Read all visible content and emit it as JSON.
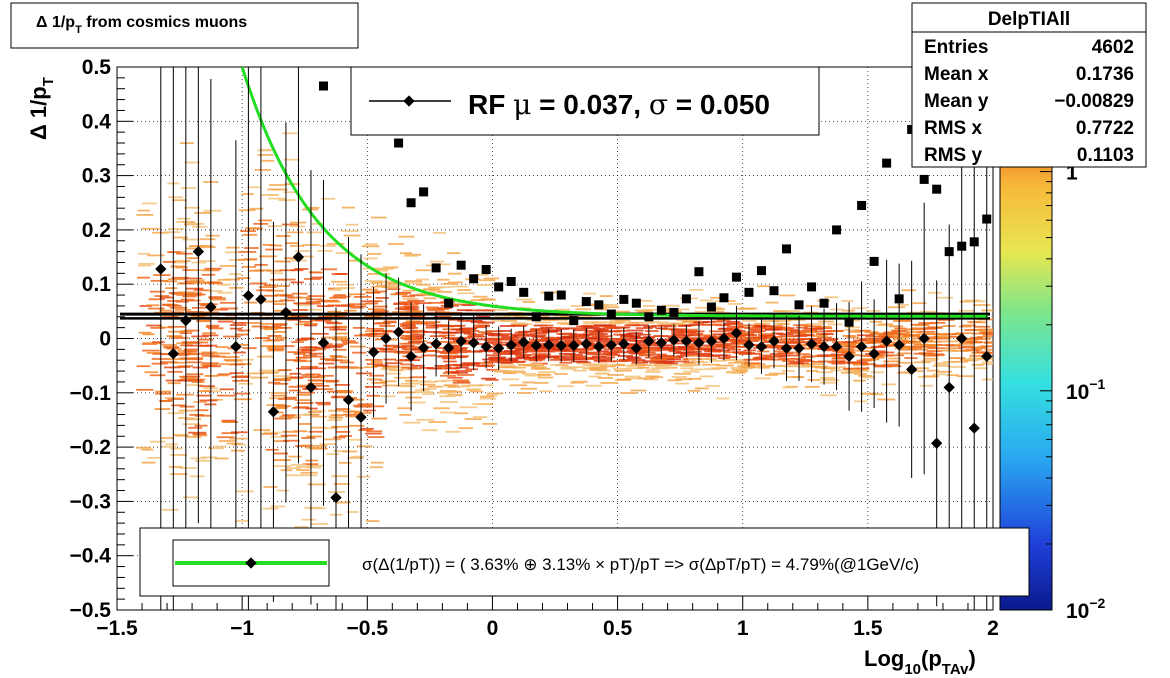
{
  "chart_data": {
    "type": "scatter",
    "title": "Δ 1/p",
    "title_sub": "T",
    "title_suffix": " from cosmics muons",
    "ylabel": "Δ 1/p",
    "ylabel_sub": "T",
    "xlabel": "Log",
    "xlabel_sub1": "10",
    "xlabel_mid": "(p",
    "xlabel_sub2": "TAv",
    "xlabel_end": ")",
    "xlim": [
      -1.5,
      2.0
    ],
    "ylim": [
      -0.5,
      0.5
    ],
    "xticks": [
      -1.5,
      -1,
      -0.5,
      0,
      0.5,
      1,
      1.5,
      2
    ],
    "xtick_labels": [
      "−1.5",
      "−1",
      "−0.5",
      "0",
      "0.5",
      "1",
      "1.5",
      "2"
    ],
    "yticks": [
      -0.5,
      -0.4,
      -0.3,
      -0.2,
      -0.1,
      0,
      0.1,
      0.2,
      0.3,
      0.4,
      0.5
    ],
    "ytick_labels": [
      "−0.5",
      "−0.4",
      "−0.3",
      "−0.2",
      "−0.1",
      "0",
      "0.1",
      "0.2",
      "0.3",
      "0.4",
      "0.5"
    ],
    "grid": true,
    "colorbar": {
      "scale": "log",
      "range": [
        0.01,
        3
      ],
      "labels": [
        {
          "value": 1,
          "text": "1"
        },
        {
          "value": 0.1,
          "text": "10",
          "sup": "−1"
        },
        {
          "value": 0.01,
          "text": "10",
          "sup": "−2"
        }
      ]
    },
    "stats_box": {
      "title": "DelpTIAll",
      "rows": [
        {
          "label": "Entries",
          "value": "4602"
        },
        {
          "label": "Mean x",
          "value": "0.1736"
        },
        {
          "label": "Mean y",
          "value": "−0.00829"
        },
        {
          "label": "RMS x",
          "value": "0.7722"
        },
        {
          "label": "RMS y",
          "value": "0.1103"
        }
      ]
    },
    "legend_top": {
      "text_prefix": "RF ",
      "mu_symbol": "μ",
      "mu_value": " =  0.037, ",
      "sigma_symbol": "σ",
      "sigma_value": " =   0.050"
    },
    "legend_bottom": "σ(Δ(1/pT)) = ( 3.63% ⊕  3.13% × pT)/pT => σ(ΔpT/pT) =  4.79%(@1GeV/c)",
    "hlines": [
      0.037,
      0.045
    ],
    "fit_curve": {
      "color": "#22dd22",
      "a": 0.0363,
      "b": 0.0313,
      "asymptote": 0.041
    },
    "means": {
      "x": [
        -1.325,
        -1.275,
        -1.225,
        -1.175,
        -1.125,
        -1.025,
        -0.975,
        -0.925,
        -0.875,
        -0.825,
        -0.775,
        -0.725,
        -0.675,
        -0.625,
        -0.575,
        -0.525,
        -0.475,
        -0.425,
        -0.375,
        -0.325,
        -0.275,
        -0.225,
        -0.175,
        -0.125,
        -0.075,
        -0.025,
        0.025,
        0.075,
        0.125,
        0.175,
        0.225,
        0.275,
        0.325,
        0.375,
        0.425,
        0.475,
        0.525,
        0.575,
        0.625,
        0.675,
        0.725,
        0.775,
        0.825,
        0.875,
        0.925,
        0.975,
        1.025,
        1.075,
        1.125,
        1.175,
        1.225,
        1.275,
        1.325,
        1.375,
        1.425,
        1.475,
        1.525,
        1.575,
        1.625,
        1.675,
        1.725,
        1.775,
        1.825,
        1.875,
        1.925,
        1.975
      ],
      "y": [
        0.128,
        -0.028,
        0.033,
        0.16,
        0.058,
        -0.015,
        0.079,
        0.072,
        -0.135,
        0.048,
        0.15,
        -0.09,
        -0.008,
        -0.293,
        -0.113,
        -0.145,
        -0.025,
        0.0,
        0.012,
        -0.033,
        -0.017,
        -0.01,
        -0.017,
        -0.005,
        -0.008,
        -0.015,
        -0.018,
        -0.012,
        -0.007,
        -0.013,
        -0.012,
        -0.013,
        -0.013,
        -0.01,
        -0.015,
        -0.012,
        -0.01,
        -0.018,
        -0.005,
        -0.008,
        -0.003,
        -0.005,
        -0.008,
        -0.005,
        0.0,
        0.01,
        -0.012,
        -0.015,
        -0.005,
        -0.018,
        -0.018,
        -0.01,
        -0.015,
        -0.015,
        -0.033,
        -0.015,
        -0.028,
        -0.005,
        -0.012,
        -0.057,
        0.0,
        -0.193,
        -0.09,
        0.0,
        -0.165,
        -0.033
      ],
      "err": [
        0.9,
        0.6,
        0.5,
        0.5,
        0.42,
        0.38,
        0.6,
        0.45,
        0.35,
        0.35,
        0.38,
        0.4,
        0.3,
        0.35,
        0.3,
        0.3,
        0.12,
        0.12,
        0.1,
        0.1,
        0.08,
        0.06,
        0.05,
        0.05,
        0.05,
        0.04,
        0.04,
        0.03,
        0.03,
        0.03,
        0.03,
        0.03,
        0.03,
        0.03,
        0.03,
        0.03,
        0.03,
        0.03,
        0.03,
        0.03,
        0.03,
        0.03,
        0.04,
        0.04,
        0.04,
        0.05,
        0.04,
        0.05,
        0.05,
        0.06,
        0.06,
        0.07,
        0.07,
        0.08,
        0.1,
        0.12,
        0.1,
        0.15,
        0.15,
        0.2,
        0.25,
        0.3,
        0.3,
        0.35,
        0.5,
        0.5
      ]
    },
    "sigmas": {
      "x": [
        -0.675,
        -0.375,
        -0.325,
        -0.275,
        -0.225,
        -0.175,
        -0.125,
        -0.075,
        -0.025,
        0.025,
        0.075,
        0.125,
        0.175,
        0.225,
        0.275,
        0.325,
        0.375,
        0.425,
        0.475,
        0.525,
        0.575,
        0.625,
        0.675,
        0.725,
        0.775,
        0.825,
        0.875,
        0.925,
        0.975,
        1.025,
        1.075,
        1.125,
        1.175,
        1.225,
        1.275,
        1.325,
        1.375,
        1.425,
        1.475,
        1.525,
        1.575,
        1.625,
        1.675,
        1.725,
        1.775,
        1.825,
        1.875,
        1.925,
        1.975
      ],
      "y": [
        0.465,
        0.36,
        0.25,
        0.27,
        0.13,
        0.065,
        0.135,
        0.11,
        0.127,
        0.095,
        0.105,
        0.085,
        0.04,
        0.078,
        0.08,
        0.033,
        0.068,
        0.062,
        0.045,
        0.072,
        0.065,
        0.04,
        0.052,
        0.048,
        0.073,
        0.123,
        0.058,
        0.075,
        0.113,
        0.085,
        0.125,
        0.088,
        0.165,
        0.062,
        0.095,
        0.065,
        0.2,
        0.03,
        0.245,
        0.142,
        0.323,
        0.073,
        0.385,
        0.293,
        0.275,
        0.16,
        0.17,
        0.178,
        0.22
      ]
    },
    "density_bins": [
      {
        "x": -1.3,
        "y": 0.0,
        "w": 0.6
      },
      {
        "x": -1.2,
        "y": 0.05,
        "w": 0.5
      },
      {
        "x": -1.1,
        "y": -0.05,
        "w": 0.6
      },
      {
        "x": -0.9,
        "y": 0.1,
        "w": 0.5
      },
      {
        "x": -0.8,
        "y": -0.1,
        "w": 0.5
      },
      {
        "x": -0.7,
        "y": 0.0,
        "w": 0.7
      },
      {
        "x": -0.55,
        "y": -0.05,
        "w": 0.6
      },
      {
        "x": -0.4,
        "y": 0.02,
        "w": 0.7
      },
      {
        "x": -0.25,
        "y": 0.0,
        "w": 0.8
      },
      {
        "x": -0.1,
        "y": -0.01,
        "w": 0.9
      },
      {
        "x": 0.1,
        "y": -0.01,
        "w": 1.0
      },
      {
        "x": 0.3,
        "y": -0.01,
        "w": 1.0
      },
      {
        "x": 0.5,
        "y": -0.01,
        "w": 1.0
      },
      {
        "x": 0.7,
        "y": -0.01,
        "w": 0.95
      },
      {
        "x": 0.9,
        "y": 0.0,
        "w": 0.9
      },
      {
        "x": 1.1,
        "y": -0.01,
        "w": 0.8
      },
      {
        "x": 1.3,
        "y": -0.01,
        "w": 0.7
      },
      {
        "x": 1.5,
        "y": -0.02,
        "w": 0.6
      },
      {
        "x": 1.7,
        "y": 0.0,
        "w": 0.5
      },
      {
        "x": 1.9,
        "y": 0.0,
        "w": 0.4
      }
    ]
  }
}
